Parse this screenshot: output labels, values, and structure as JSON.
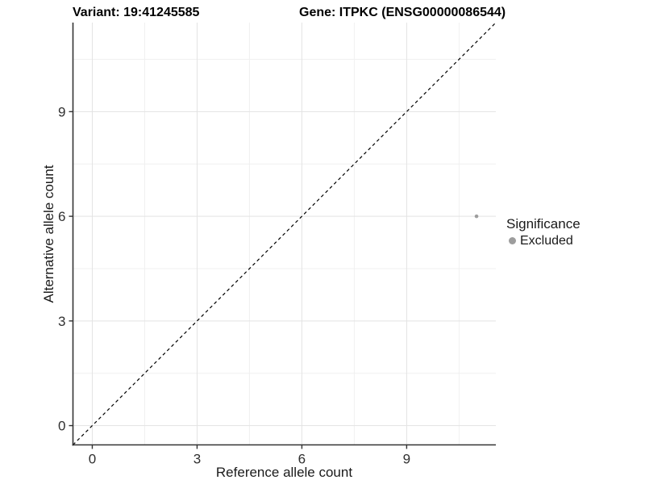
{
  "titles": {
    "left": "Variant: 19:41245585",
    "right": "Gene: ITPKC (ENSG00000086544)"
  },
  "chart_data": {
    "type": "scatter",
    "title_left": "Variant: 19:41245585",
    "title_right": "Gene: ITPKC (ENSG00000086544)",
    "xlabel": "Reference allele count",
    "ylabel": "Alternative allele count",
    "xlim": [
      -0.553,
      11.553
    ],
    "ylim": [
      -0.553,
      11.553
    ],
    "xticks": [
      0,
      3,
      6,
      9
    ],
    "yticks": [
      0,
      3,
      6,
      9
    ],
    "xticks_minor": [
      1.5,
      4.5,
      7.5,
      10.5
    ],
    "yticks_minor": [
      1.5,
      4.5,
      7.5,
      10.5
    ],
    "grid": true,
    "reference_line": {
      "type": "identity",
      "equation": "y = x",
      "style": "dashed",
      "color": "#000000"
    },
    "series": [
      {
        "name": "Excluded",
        "color": "#9d9d9d",
        "points": [
          {
            "x": 11,
            "y": 6
          }
        ]
      }
    ],
    "legend": {
      "position": "right",
      "title": "Significance",
      "entries": [
        {
          "label": "Excluded",
          "color": "#9d9d9d"
        }
      ]
    },
    "colors": {
      "axis_line": "#333333",
      "tick_label": "#303030",
      "grid_major": "#e3e3e3",
      "grid_minor": "#f0f0f0",
      "point": "#9d9d9d",
      "background": "#ffffff"
    }
  }
}
